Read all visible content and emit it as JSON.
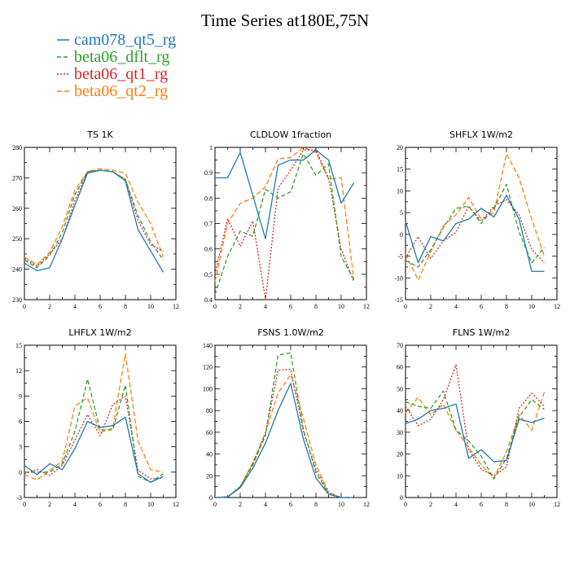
{
  "figure": {
    "title": "Time Series at180E,75N",
    "legend": [
      {
        "label": "cam078_qt5_rg",
        "color": "#1f77b4"
      },
      {
        "label": "beta06_dflt_rg",
        "color": "#2ca02c"
      },
      {
        "label": "beta06_qt1_rg",
        "color": "#d62728"
      },
      {
        "label": "beta06_qt2_rg",
        "color": "#ff7f0e"
      }
    ]
  },
  "chart_data": [
    {
      "type": "line",
      "title": "TS   1K",
      "xlim": [
        0,
        12
      ],
      "ylim": [
        230,
        280
      ],
      "xticks": [
        0,
        2,
        4,
        6,
        8,
        10,
        12
      ],
      "yticks": [
        230,
        240,
        250,
        260,
        270,
        280
      ],
      "x": [
        0,
        1,
        2,
        3,
        4,
        5,
        6,
        7,
        8,
        9,
        10,
        11
      ],
      "series": [
        {
          "name": "cam078_qt5_rg",
          "values": [
            242,
            239.5,
            240.5,
            250,
            261,
            271.5,
            272.5,
            272,
            269,
            253,
            246,
            239
          ]
        },
        {
          "name": "beta06_dflt_rg",
          "values": [
            243,
            240.5,
            244.5,
            252,
            264.5,
            272,
            272.5,
            272,
            269.5,
            257.5,
            249,
            243
          ]
        },
        {
          "name": "beta06_qt1_rg",
          "values": [
            243.5,
            241,
            245,
            250,
            262.5,
            272,
            272.5,
            272,
            269.5,
            256,
            248,
            246
          ]
        },
        {
          "name": "beta06_qt2_rg",
          "values": [
            244,
            241.5,
            245.5,
            254,
            266,
            272,
            273,
            272.5,
            271.5,
            262,
            255,
            244
          ]
        }
      ]
    },
    {
      "type": "line",
      "title": "CLDLOW   1fraction",
      "xlim": [
        0,
        12
      ],
      "ylim": [
        0.4,
        1.0
      ],
      "xticks": [
        0,
        2,
        4,
        6,
        8,
        10,
        12
      ],
      "yticks": [
        0.4,
        0.5,
        0.6,
        0.7,
        0.8,
        0.9,
        1.0
      ],
      "x": [
        0,
        1,
        2,
        3,
        4,
        5,
        6,
        7,
        8,
        9,
        10,
        11
      ],
      "series": [
        {
          "name": "cam078_qt5_rg",
          "values": [
            0.88,
            0.88,
            0.98,
            0.81,
            0.64,
            0.93,
            0.95,
            0.95,
            0.99,
            0.95,
            0.78,
            0.86
          ]
        },
        {
          "name": "beta06_dflt_rg",
          "values": [
            0.42,
            0.57,
            0.67,
            0.65,
            0.835,
            0.8,
            0.825,
            0.975,
            0.89,
            0.935,
            0.57,
            0.48
          ]
        },
        {
          "name": "beta06_qt1_rg",
          "values": [
            0.5,
            0.72,
            0.61,
            0.71,
            0.4,
            0.84,
            0.91,
            0.99,
            0.99,
            0.88,
            0.6,
            0.47
          ]
        },
        {
          "name": "beta06_qt2_rg",
          "values": [
            0.47,
            0.7,
            0.78,
            0.8,
            0.845,
            0.955,
            0.96,
            1.0,
            0.98,
            0.875,
            0.88,
            0.48
          ]
        }
      ]
    },
    {
      "type": "line",
      "title": "SHFLX   1W/m2",
      "xlim": [
        0,
        12
      ],
      "ylim": [
        -15,
        20
      ],
      "xticks": [
        0,
        2,
        4,
        6,
        8,
        10,
        12
      ],
      "yticks": [
        -15,
        -10,
        -5,
        0,
        5,
        10,
        15,
        20
      ],
      "x": [
        0,
        1,
        2,
        3,
        4,
        5,
        6,
        7,
        8,
        9,
        10,
        11
      ],
      "series": [
        {
          "name": "cam078_qt5_rg",
          "values": [
            3,
            -6.5,
            -0.5,
            -1.5,
            2.5,
            3.5,
            6,
            4,
            9,
            3.5,
            -8.5,
            -8.5
          ]
        },
        {
          "name": "beta06_dflt_rg",
          "values": [
            -6,
            -7.5,
            -3.5,
            1.5,
            6,
            6.5,
            2.5,
            6,
            11.5,
            0.5,
            -6.5,
            -3
          ]
        },
        {
          "name": "beta06_qt1_rg",
          "values": [
            -5.5,
            -0.5,
            -5.5,
            -1.5,
            0.5,
            6.5,
            3,
            6.5,
            8,
            4.5,
            -3.5,
            -6.5
          ]
        },
        {
          "name": "beta06_qt2_rg",
          "values": [
            -4.5,
            -10.5,
            -4,
            2,
            4.5,
            8.5,
            3.5,
            5,
            18.5,
            13,
            3.5,
            -5
          ]
        }
      ]
    },
    {
      "type": "line",
      "title": "LHFLX   1W/m2",
      "xlim": [
        0,
        12
      ],
      "ylim": [
        -3,
        15
      ],
      "xticks": [
        0,
        2,
        4,
        6,
        8,
        10,
        12
      ],
      "yticks": [
        -3,
        0,
        3,
        6,
        9,
        12,
        15
      ],
      "x": [
        0,
        1,
        2,
        3,
        4,
        5,
        6,
        7,
        8,
        9,
        10,
        11
      ],
      "series": [
        {
          "name": "cam078_qt5_rg",
          "values": [
            0.8,
            -0.3,
            1.0,
            0.3,
            2.8,
            6.0,
            5.3,
            5.5,
            6.5,
            -0.2,
            -1.2,
            -0.5
          ]
        },
        {
          "name": "beta06_dflt_rg",
          "values": [
            0,
            0,
            0,
            1,
            4.8,
            11,
            5,
            5,
            10.3,
            -0.5,
            -1.2,
            -0.2
          ]
        },
        {
          "name": "beta06_qt1_rg",
          "values": [
            -0.2,
            0.3,
            -0.4,
            0.8,
            3.8,
            6.8,
            4.3,
            8,
            9.0,
            0.2,
            -0.8,
            -0.7
          ]
        },
        {
          "name": "beta06_qt2_rg",
          "values": [
            -0.3,
            -0.9,
            0.2,
            1.3,
            7.8,
            8.8,
            4.7,
            5.2,
            14,
            3.7,
            0.3,
            0
          ]
        }
      ]
    },
    {
      "type": "line",
      "title": "FSNS   1.0W/m2",
      "xlim": [
        0,
        12
      ],
      "ylim": [
        0,
        140
      ],
      "xticks": [
        0,
        2,
        4,
        6,
        8,
        10,
        12
      ],
      "yticks": [
        0,
        20,
        40,
        60,
        80,
        100,
        120,
        140
      ],
      "x": [
        0,
        1,
        2,
        3,
        4,
        5,
        6,
        7,
        8,
        9,
        10,
        11
      ],
      "series": [
        {
          "name": "cam078_qt5_rg",
          "values": [
            0,
            0.5,
            9,
            27,
            50,
            80,
            105,
            54,
            18,
            3,
            0,
            0
          ]
        },
        {
          "name": "beta06_dflt_rg",
          "values": [
            0,
            0.5,
            10,
            30,
            57,
            131,
            133,
            63,
            23,
            3,
            0,
            0
          ]
        },
        {
          "name": "beta06_qt1_rg",
          "values": [
            0,
            0.5,
            10,
            31,
            59,
            117,
            118,
            61,
            26,
            4,
            0,
            0
          ]
        },
        {
          "name": "beta06_qt2_rg",
          "values": [
            0,
            0.5,
            10,
            32,
            60,
            96,
            113,
            73,
            30,
            5,
            0,
            0
          ]
        }
      ]
    },
    {
      "type": "line",
      "title": "FLNS   1W/m2",
      "xlim": [
        0,
        12
      ],
      "ylim": [
        0,
        70
      ],
      "xticks": [
        0,
        2,
        4,
        6,
        8,
        10,
        12
      ],
      "yticks": [
        0,
        10,
        20,
        30,
        40,
        50,
        60,
        70
      ],
      "x": [
        0,
        1,
        2,
        3,
        4,
        5,
        6,
        7,
        8,
        9,
        10,
        11
      ],
      "series": [
        {
          "name": "cam078_qt5_rg",
          "values": [
            34,
            36,
            40,
            41,
            43,
            18,
            22,
            16.5,
            17,
            36,
            34.5,
            36.5
          ]
        },
        {
          "name": "beta06_dflt_rg",
          "values": [
            44,
            42,
            41,
            49,
            31,
            26,
            19,
            8.5,
            18,
            37,
            45,
            40.5
          ]
        },
        {
          "name": "beta06_qt1_rg",
          "values": [
            42,
            33,
            36,
            45,
            61,
            22,
            13,
            10,
            14,
            41,
            48,
            42
          ]
        },
        {
          "name": "beta06_qt2_rg",
          "values": [
            39,
            46,
            38,
            43,
            31,
            23,
            15,
            9,
            21,
            38,
            31,
            48.5
          ]
        }
      ]
    }
  ]
}
